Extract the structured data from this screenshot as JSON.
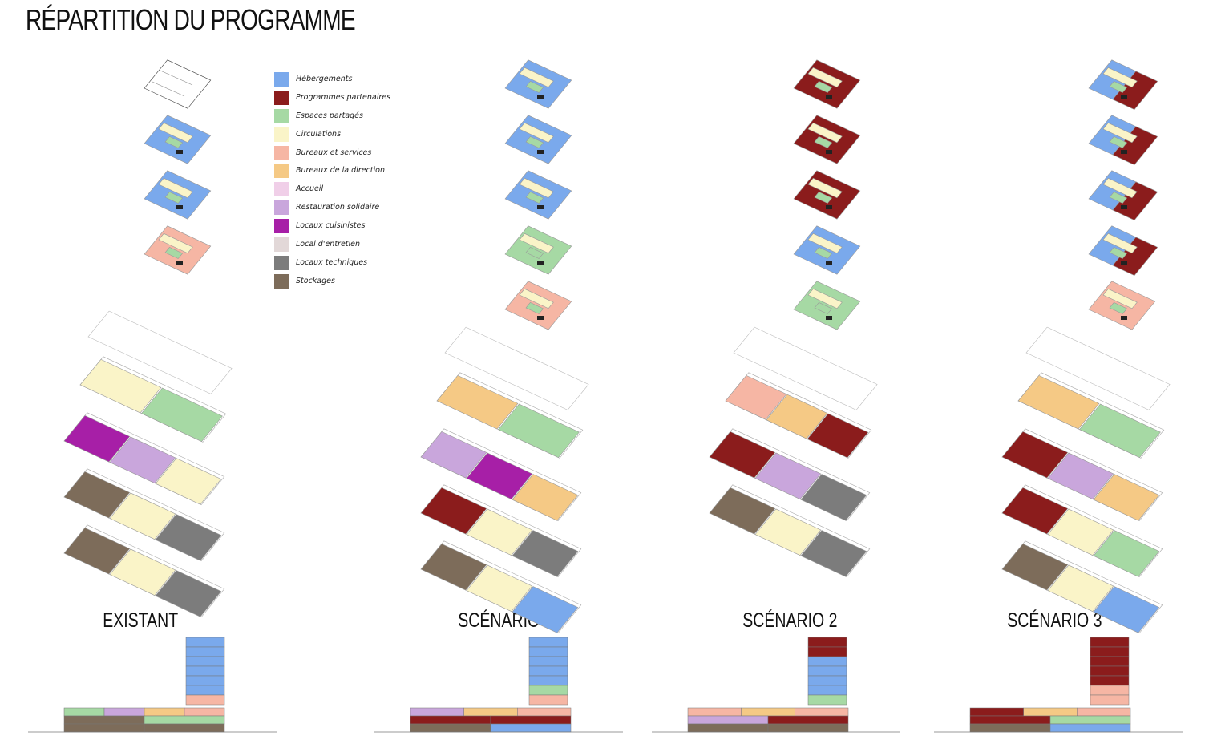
{
  "title": "RÉPARTITION DU PROGRAMME",
  "legend": [
    {
      "label": "Hébergements",
      "color": "#7aa9ec"
    },
    {
      "label": "Programmes partenaires",
      "color": "#8b1c1c"
    },
    {
      "label": "Espaces partagés",
      "color": "#a6d9a4"
    },
    {
      "label": "Circulations",
      "color": "#faf4c8"
    },
    {
      "label": "Bureaux et services",
      "color": "#f6b6a4"
    },
    {
      "label": "Bureaux de la direction",
      "color": "#f5c985"
    },
    {
      "label": "Accueil",
      "color": "#f0cfe8"
    },
    {
      "label": "Restauration solidaire",
      "color": "#c9a6dc"
    },
    {
      "label": "Locaux cuisinistes",
      "color": "#a71fa7"
    },
    {
      "label": "Local d'entretien",
      "color": "#e2d8d8"
    },
    {
      "label": "Locaux techniques",
      "color": "#7c7c7c"
    },
    {
      "label": "Stockages",
      "color": "#7d6c5a"
    }
  ],
  "columns": [
    {
      "label": "EXISTANT",
      "tower": [
        "outline",
        "hebergements",
        "hebergements",
        "bureaux"
      ],
      "plinth": [
        [
          "circulations",
          "espaces"
        ],
        [
          "cuisinistes",
          "restauration",
          "circulations"
        ],
        [
          "stockages",
          "circulations",
          "techniques"
        ],
        [
          "stockages",
          "circulations",
          "techniques"
        ]
      ],
      "section_tower": [
        "hebergements",
        "hebergements",
        "hebergements",
        "hebergements",
        "hebergements",
        "hebergements",
        "bureaux"
      ],
      "section_base": [
        [
          "espaces",
          "restauration",
          "bureaux_dir",
          "bureaux"
        ],
        [
          "stockages",
          "espaces"
        ],
        [
          "stockages",
          "stockages"
        ]
      ]
    },
    {
      "label": "SCÉNARIO 1",
      "tower": [
        "hebergements",
        "hebergements",
        "hebergements",
        "espaces",
        "bureaux"
      ],
      "plinth": [
        [
          "bureaux_dir",
          "espaces"
        ],
        [
          "restauration",
          "cuisinistes",
          "bureaux_dir"
        ],
        [
          "partenaires",
          "circulations",
          "techniques"
        ],
        [
          "stockages",
          "circulations",
          "hebergements"
        ]
      ],
      "section_tower": [
        "hebergements",
        "hebergements",
        "hebergements",
        "hebergements",
        "hebergements",
        "espaces",
        "bureaux"
      ],
      "section_base": [
        [
          "restauration",
          "bureaux_dir",
          "bureaux"
        ],
        [
          "partenaires",
          "partenaires"
        ],
        [
          "stockages",
          "hebergements"
        ]
      ]
    },
    {
      "label": "SCÉNARIO 2",
      "tower": [
        "partenaires",
        "partenaires",
        "partenaires",
        "hebergements",
        "espaces"
      ],
      "plinth": [
        [
          "bureaux",
          "bureaux_dir",
          "partenaires"
        ],
        [
          "partenaires",
          "restauration",
          "techniques"
        ],
        [
          "stockages",
          "circulations",
          "techniques"
        ]
      ],
      "section_tower": [
        "partenaires",
        "partenaires",
        "hebergements",
        "hebergements",
        "hebergements",
        "hebergements",
        "espaces"
      ],
      "section_base": [
        [
          "bureaux",
          "bureaux_dir",
          "bureaux"
        ],
        [
          "restauration",
          "partenaires"
        ],
        [
          "stockages",
          "stockages"
        ]
      ]
    },
    {
      "label": "SCÉNARIO 3",
      "tower": [
        "mixed",
        "mixed",
        "mixed",
        "mixed",
        "bureaux"
      ],
      "plinth": [
        [
          "bureaux_dir",
          "espaces"
        ],
        [
          "partenaires",
          "restauration",
          "bureaux_dir"
        ],
        [
          "partenaires",
          "circulations",
          "espaces"
        ],
        [
          "stockages",
          "circulations",
          "hebergements"
        ]
      ],
      "section_tower": [
        "mixed",
        "mixed",
        "mixed",
        "mixed",
        "mixed",
        "bureaux",
        "bureaux"
      ],
      "section_base": [
        [
          "partenaires",
          "bureaux_dir",
          "bureaux"
        ],
        [
          "partenaires",
          "espaces"
        ],
        [
          "stockages",
          "hebergements"
        ]
      ]
    }
  ]
}
